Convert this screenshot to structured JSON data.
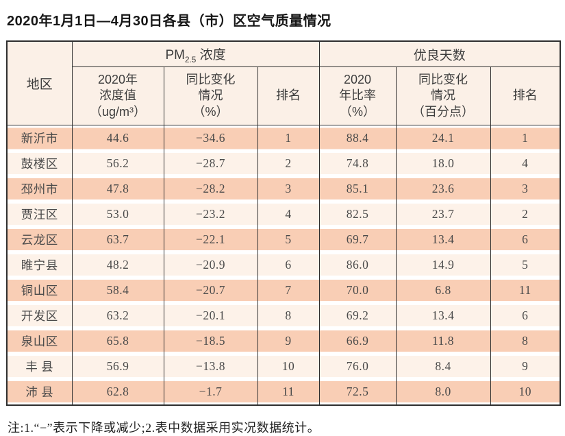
{
  "title": "2020年1月1日—4月30日各县（市）区空气质量情况",
  "table": {
    "region_header": "地区",
    "group_pm25": {
      "prefix": "PM",
      "sub": "2.5",
      "suffix": " 浓度"
    },
    "group_good_days": "优良天数",
    "sub_headers": {
      "pm_value": "2020年\n浓度值\n（ug/m³）",
      "pm_change": "同比变化\n情况\n（%）",
      "pm_rank": "排名",
      "gd_rate": "2020\n年比率\n（%）",
      "gd_change": "同比变化\n情况\n（百分点）",
      "gd_rank": "排名"
    },
    "rows": [
      {
        "region": "新沂市",
        "pm_value": "44.6",
        "pm_change": "−34.6",
        "pm_rank": "1",
        "gd_rate": "88.4",
        "gd_change": "24.1",
        "gd_rank": "1"
      },
      {
        "region": "鼓楼区",
        "pm_value": "56.2",
        "pm_change": "−28.7",
        "pm_rank": "2",
        "gd_rate": "74.8",
        "gd_change": "18.0",
        "gd_rank": "4"
      },
      {
        "region": "邳州市",
        "pm_value": "47.8",
        "pm_change": "−28.2",
        "pm_rank": "3",
        "gd_rate": "85.1",
        "gd_change": "23.6",
        "gd_rank": "3"
      },
      {
        "region": "贾汪区",
        "pm_value": "53.0",
        "pm_change": "−23.2",
        "pm_rank": "4",
        "gd_rate": "82.5",
        "gd_change": "23.7",
        "gd_rank": "2"
      },
      {
        "region": "云龙区",
        "pm_value": "63.7",
        "pm_change": "−22.1",
        "pm_rank": "5",
        "gd_rate": "69.7",
        "gd_change": "13.4",
        "gd_rank": "6"
      },
      {
        "region": "睢宁县",
        "pm_value": "48.2",
        "pm_change": "−20.9",
        "pm_rank": "6",
        "gd_rate": "86.0",
        "gd_change": "14.9",
        "gd_rank": "5"
      },
      {
        "region": "铜山区",
        "pm_value": "58.4",
        "pm_change": "−20.7",
        "pm_rank": "7",
        "gd_rate": "70.0",
        "gd_change": "6.8",
        "gd_rank": "11"
      },
      {
        "region": "开发区",
        "pm_value": "63.2",
        "pm_change": "−20.1",
        "pm_rank": "8",
        "gd_rate": "69.2",
        "gd_change": "13.4",
        "gd_rank": "6"
      },
      {
        "region": "泉山区",
        "pm_value": "65.8",
        "pm_change": "−18.5",
        "pm_rank": "9",
        "gd_rate": "66.9",
        "gd_change": "11.8",
        "gd_rank": "8"
      },
      {
        "region": "丰 县",
        "pm_value": "56.9",
        "pm_change": "−13.8",
        "pm_rank": "10",
        "gd_rate": "76.0",
        "gd_change": "8.4",
        "gd_rank": "9"
      },
      {
        "region": "沛 县",
        "pm_value": "62.8",
        "pm_change": "−1.7",
        "pm_rank": "11",
        "gd_rate": "72.5",
        "gd_change": "8.0",
        "gd_rank": "10"
      }
    ]
  },
  "note": "注:1.“−”表示下降或减少;2.表中数据采用实况数据统计。",
  "colors": {
    "band_dark": "#f9ceb5",
    "band_light": "#fdf2e9",
    "header_bg": "#fbf0e7",
    "border": "#2e2e2e"
  }
}
